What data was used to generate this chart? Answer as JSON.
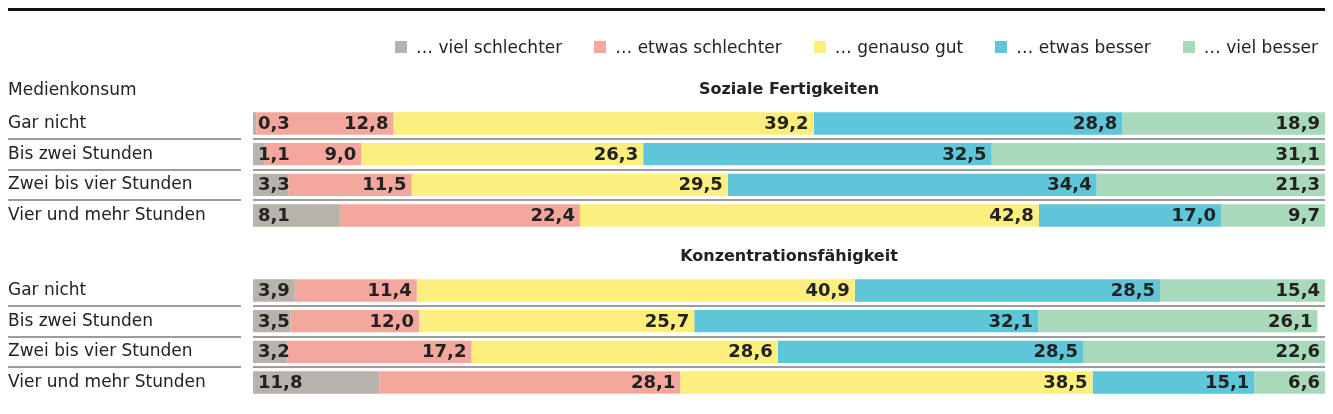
{
  "chart_data": [
    {
      "type": "bar",
      "orientation": "horizontal",
      "stacked": true,
      "title": "Soziale Fertigkeiten",
      "ylabel": "Medienkonsum",
      "categories": [
        "Gar nicht",
        "Bis zwei Stunden",
        "Zwei bis vier Stunden",
        "Vier und mehr Stunden"
      ],
      "legend": "top",
      "tick_labels": "y",
      "series": [
        {
          "name": "… viel schlechter",
          "color": "#b8b3aa",
          "values": [
            0.3,
            1.1,
            3.3,
            8.1
          ],
          "value_labels": [
            "0,3",
            "1,1",
            "3,3",
            "8,1"
          ]
        },
        {
          "name": "… etwas schlechter",
          "color": "#f4a89d",
          "values": [
            12.8,
            9.0,
            11.5,
            22.4
          ],
          "value_labels": [
            "12,8",
            "9,0",
            "11,5",
            "22,4"
          ]
        },
        {
          "name": "… genauso gut",
          "color": "#fcef7d",
          "values": [
            39.2,
            26.3,
            29.5,
            42.8
          ],
          "value_labels": [
            "39,2",
            "26,3",
            "29,5",
            "42,8"
          ]
        },
        {
          "name": "… etwas besser",
          "color": "#5ec6d8",
          "values": [
            28.8,
            32.5,
            34.4,
            17.0
          ],
          "value_labels": [
            "28,8",
            "32,5",
            "34,4",
            "17,0"
          ]
        },
        {
          "name": "… viel besser",
          "color": "#a8d9bb",
          "values": [
            18.9,
            31.1,
            21.3,
            9.7
          ],
          "value_labels": [
            "18,9",
            "31,1",
            "21,3",
            "9,7"
          ]
        }
      ]
    },
    {
      "type": "bar",
      "orientation": "horizontal",
      "stacked": true,
      "title": "Konzentrationsfähigkeit",
      "categories": [
        "Gar nicht",
        "Bis zwei Stunden",
        "Zwei bis vier Stunden",
        "Vier und mehr Stunden"
      ],
      "tick_labels": "y",
      "series": [
        {
          "color": "#b8b3aa",
          "values": [
            3.9,
            3.5,
            3.2,
            11.8
          ],
          "value_labels": [
            "3,9",
            "3,5",
            "3,2",
            "11,8"
          ]
        },
        {
          "color": "#f4a89d",
          "values": [
            11.4,
            12.0,
            17.2,
            28.1
          ],
          "value_labels": [
            "11,4",
            "12,0",
            "17,2",
            "28,1"
          ]
        },
        {
          "color": "#fcef7d",
          "values": [
            40.9,
            25.7,
            28.6,
            38.5
          ],
          "value_labels": [
            "40,9",
            "25,7",
            "28,6",
            "38,5"
          ]
        },
        {
          "color": "#5ec6d8",
          "values": [
            28.5,
            32.1,
            28.5,
            15.1
          ],
          "value_labels": [
            "28,5",
            "32,1",
            "28,5",
            "15,1"
          ]
        },
        {
          "color": "#a8d9bb",
          "values": [
            15.4,
            26.1,
            22.6,
            6.6
          ],
          "value_labels": [
            "15,4",
            "26,1",
            "22,6",
            "6,6"
          ]
        }
      ]
    }
  ]
}
